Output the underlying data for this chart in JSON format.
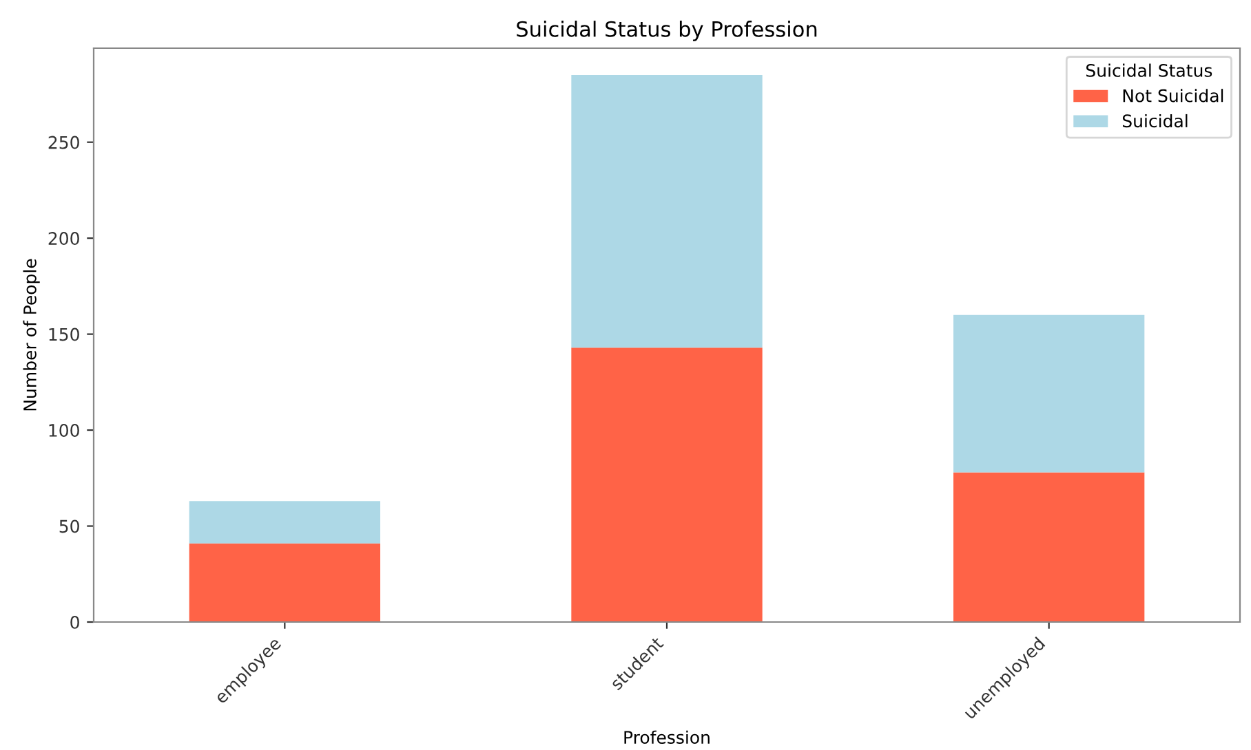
{
  "chart_data": {
    "type": "bar",
    "title": "Suicidal Status by Profession",
    "xlabel": "Profession",
    "ylabel": "Number of People",
    "legend_title": "Suicidal Status",
    "categories": [
      "employee",
      "student",
      "unemployed"
    ],
    "stacked": true,
    "series": [
      {
        "name": "Not Suicidal",
        "color": "#ff6347",
        "values": [
          41,
          143,
          78
        ]
      },
      {
        "name": "Suicidal",
        "color": "#add8e6",
        "values": [
          22,
          142,
          82
        ]
      }
    ],
    "ylim": [
      0,
      299
    ],
    "yticks": [
      0,
      50,
      100,
      150,
      200,
      250
    ],
    "grid": false,
    "legend": "top right"
  }
}
